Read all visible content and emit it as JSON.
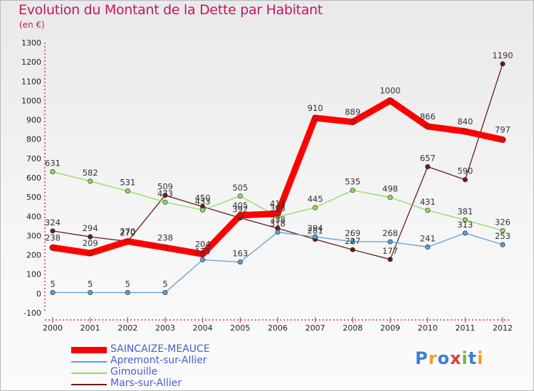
{
  "header": {
    "title": "Evolution du Montant de la Dette par Habitant",
    "subtitle": "(en €)"
  },
  "chart_data": {
    "type": "line",
    "x": [
      "2000",
      "2001",
      "2002",
      "2003",
      "2004",
      "2005",
      "2006",
      "2007",
      "2008",
      "2009",
      "2010",
      "2011",
      "2012"
    ],
    "ylim": [
      -100,
      1300
    ],
    "y_ticks": [
      "-100",
      "0",
      "100",
      "200",
      "300",
      "400",
      "500",
      "600",
      "700",
      "800",
      "900",
      "1000",
      "1100",
      "1200",
      "1300"
    ],
    "grid": false,
    "legend_position": "bottom-left",
    "series": [
      {
        "name": "Mars-sur-Allier",
        "color": "#6b1a1a",
        "width": 1.3,
        "values": [
          324,
          294,
          270,
          509,
          450,
          392,
          338,
          281,
          227,
          177,
          657,
          590,
          1190
        ]
      },
      {
        "name": "Gimouille",
        "color": "#8fdc5a",
        "width": 1.3,
        "values": [
          631,
          582,
          531,
          473,
          433,
          505,
          398,
          445,
          535,
          498,
          431,
          381,
          326
        ]
      },
      {
        "name": "Apremont-sur-Allier",
        "color": "#5a9fd6",
        "width": 1.3,
        "values": [
          5,
          5,
          5,
          5,
          175,
          163,
          318,
          294,
          269,
          268,
          241,
          313,
          253
        ]
      },
      {
        "name": "SAINCAIZE-MEAUCE",
        "color": "#ff0000",
        "width": 9,
        "values": [
          238,
          209,
          270,
          238,
          204,
          405,
          414,
          910,
          889,
          1000,
          866,
          840,
          797
        ]
      }
    ],
    "data_labels": [
      {
        "series": "SAINCAIZE-MEAUCE",
        "labels": [
          "238",
          "209",
          "270",
          "238",
          "204",
          "405",
          "414",
          "910",
          "889",
          "1000",
          "866",
          "840",
          "797"
        ]
      },
      {
        "series": "Apremont-sur-Allier",
        "labels": [
          "5",
          "5",
          "5",
          "5",
          "175",
          "163",
          "318",
          "294",
          "269",
          "268",
          "241",
          "313",
          "253"
        ]
      },
      {
        "series": "Gimouille",
        "labels": [
          "631",
          "582",
          "531",
          "473",
          "433",
          "505",
          "398",
          "445",
          "535",
          "498",
          "431",
          "381",
          "326"
        ]
      },
      {
        "series": "Mars-sur-Allier",
        "labels": [
          "324",
          "294",
          "270",
          "509",
          "450",
          "392",
          "338",
          "281",
          "227",
          "177",
          "657",
          "590",
          "1190"
        ]
      }
    ]
  },
  "legend": {
    "items": [
      {
        "label": "SAINCAIZE-MEAUCE",
        "color": "#ff0000"
      },
      {
        "label": "Apremont-sur-Allier",
        "color": "#5a9fd6"
      },
      {
        "label": "Gimouille",
        "color": "#8fdc5a"
      },
      {
        "label": "Mars-sur-Allier",
        "color": "#6b1a1a"
      }
    ]
  },
  "logo": {
    "text": "Proxiti",
    "letter_colors": [
      "#3a7fd6",
      "#f39c1e",
      "#3a7fd6",
      "#e53935",
      "#7cb342",
      "#3a7fd6",
      "#f39c1e"
    ]
  }
}
